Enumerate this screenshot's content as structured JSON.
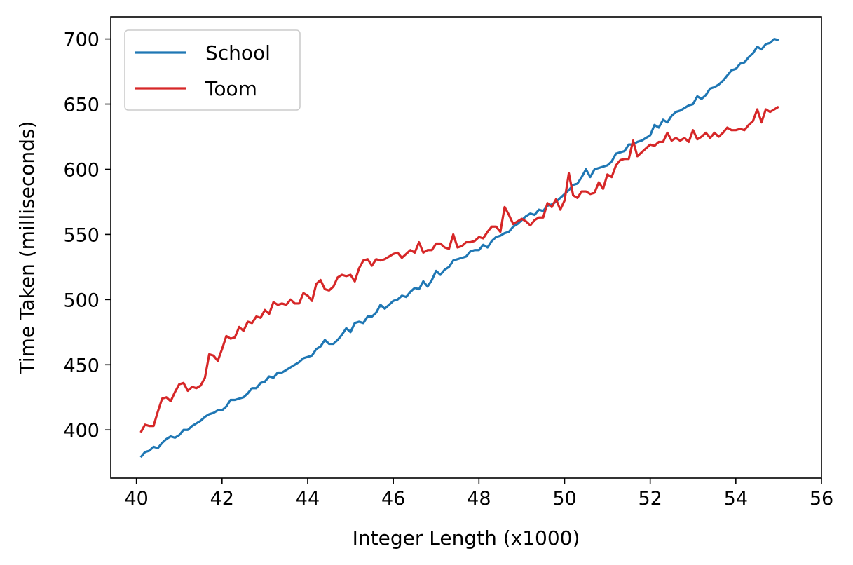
{
  "chart_data": {
    "type": "line",
    "title": "",
    "xlabel": "Integer Length (x1000)",
    "ylabel": "Time Taken (milliseconds)",
    "xlim": [
      39.4,
      56.0
    ],
    "ylim": [
      363,
      717
    ],
    "xticks": [
      40,
      42,
      44,
      46,
      48,
      50,
      52,
      54,
      56
    ],
    "yticks": [
      400,
      450,
      500,
      550,
      600,
      650,
      700
    ],
    "grid": false,
    "legend": "top-left",
    "series": [
      {
        "name": "School",
        "color": "#1f77b4",
        "points": [
          [
            40.1,
            379
          ],
          [
            40.2,
            383
          ],
          [
            40.3,
            384
          ],
          [
            40.4,
            387
          ],
          [
            40.5,
            386
          ],
          [
            40.6,
            390
          ],
          [
            40.7,
            393
          ],
          [
            40.8,
            395
          ],
          [
            40.9,
            394
          ],
          [
            41.0,
            396
          ],
          [
            41.1,
            400
          ],
          [
            41.2,
            400
          ],
          [
            41.3,
            403
          ],
          [
            41.4,
            405
          ],
          [
            41.5,
            407
          ],
          [
            41.6,
            410
          ],
          [
            41.7,
            412
          ],
          [
            41.8,
            413
          ],
          [
            41.9,
            415
          ],
          [
            42.0,
            415
          ],
          [
            42.1,
            418
          ],
          [
            42.2,
            423
          ],
          [
            42.3,
            423
          ],
          [
            42.4,
            424
          ],
          [
            42.5,
            425
          ],
          [
            42.6,
            428
          ],
          [
            42.7,
            432
          ],
          [
            42.8,
            432
          ],
          [
            42.9,
            436
          ],
          [
            43.0,
            437
          ],
          [
            43.1,
            441
          ],
          [
            43.2,
            440
          ],
          [
            43.3,
            444
          ],
          [
            43.4,
            444
          ],
          [
            43.5,
            446
          ],
          [
            43.6,
            448
          ],
          [
            43.7,
            450
          ],
          [
            43.8,
            452
          ],
          [
            43.9,
            455
          ],
          [
            44.0,
            456
          ],
          [
            44.1,
            457
          ],
          [
            44.2,
            462
          ],
          [
            44.3,
            464
          ],
          [
            44.4,
            469
          ],
          [
            44.5,
            466
          ],
          [
            44.6,
            466
          ],
          [
            44.7,
            469
          ],
          [
            44.8,
            473
          ],
          [
            44.9,
            478
          ],
          [
            45.0,
            475
          ],
          [
            45.1,
            482
          ],
          [
            45.2,
            483
          ],
          [
            45.3,
            482
          ],
          [
            45.4,
            487
          ],
          [
            45.5,
            487
          ],
          [
            45.6,
            490
          ],
          [
            45.7,
            496
          ],
          [
            45.8,
            493
          ],
          [
            45.9,
            496
          ],
          [
            46.0,
            499
          ],
          [
            46.1,
            500
          ],
          [
            46.2,
            503
          ],
          [
            46.3,
            502
          ],
          [
            46.4,
            506
          ],
          [
            46.5,
            509
          ],
          [
            46.6,
            508
          ],
          [
            46.7,
            514
          ],
          [
            46.8,
            510
          ],
          [
            46.9,
            515
          ],
          [
            47.0,
            522
          ],
          [
            47.1,
            519
          ],
          [
            47.2,
            523
          ],
          [
            47.3,
            525
          ],
          [
            47.4,
            530
          ],
          [
            47.5,
            531
          ],
          [
            47.6,
            532
          ],
          [
            47.7,
            533
          ],
          [
            47.8,
            537
          ],
          [
            47.9,
            538
          ],
          [
            48.0,
            538
          ],
          [
            48.1,
            542
          ],
          [
            48.2,
            540
          ],
          [
            48.3,
            545
          ],
          [
            48.4,
            548
          ],
          [
            48.5,
            549
          ],
          [
            48.6,
            551
          ],
          [
            48.7,
            552
          ],
          [
            48.8,
            556
          ],
          [
            48.9,
            558
          ],
          [
            49.0,
            561
          ],
          [
            49.1,
            564
          ],
          [
            49.2,
            566
          ],
          [
            49.3,
            565
          ],
          [
            49.4,
            569
          ],
          [
            49.5,
            568
          ],
          [
            49.6,
            572
          ],
          [
            49.7,
            573
          ],
          [
            49.8,
            575
          ],
          [
            49.9,
            578
          ],
          [
            50.0,
            581
          ],
          [
            50.1,
            584
          ],
          [
            50.2,
            588
          ],
          [
            50.3,
            589
          ],
          [
            50.4,
            594
          ],
          [
            50.5,
            600
          ],
          [
            50.6,
            594
          ],
          [
            50.7,
            600
          ],
          [
            50.8,
            601
          ],
          [
            50.9,
            602
          ],
          [
            51.0,
            603
          ],
          [
            51.1,
            606
          ],
          [
            51.2,
            612
          ],
          [
            51.3,
            613
          ],
          [
            51.4,
            614
          ],
          [
            51.5,
            619
          ],
          [
            51.6,
            619
          ],
          [
            51.7,
            621
          ],
          [
            51.8,
            622
          ],
          [
            51.9,
            624
          ],
          [
            52.0,
            626
          ],
          [
            52.1,
            634
          ],
          [
            52.2,
            632
          ],
          [
            52.3,
            638
          ],
          [
            52.4,
            636
          ],
          [
            52.5,
            641
          ],
          [
            52.6,
            644
          ],
          [
            52.7,
            645
          ],
          [
            52.8,
            647
          ],
          [
            52.9,
            649
          ],
          [
            53.0,
            650
          ],
          [
            53.1,
            656
          ],
          [
            53.2,
            654
          ],
          [
            53.3,
            657
          ],
          [
            53.4,
            662
          ],
          [
            53.5,
            663
          ],
          [
            53.6,
            665
          ],
          [
            53.7,
            668
          ],
          [
            53.8,
            672
          ],
          [
            53.9,
            676
          ],
          [
            54.0,
            677
          ],
          [
            54.1,
            681
          ],
          [
            54.2,
            682
          ],
          [
            54.3,
            686
          ],
          [
            54.4,
            689
          ],
          [
            54.5,
            694
          ],
          [
            54.6,
            692
          ],
          [
            54.7,
            696
          ],
          [
            54.8,
            697
          ],
          [
            54.9,
            700
          ],
          [
            55.0,
            699
          ]
        ]
      },
      {
        "name": "Toom",
        "color": "#d62728",
        "points": [
          [
            40.1,
            398
          ],
          [
            40.2,
            404
          ],
          [
            40.3,
            403
          ],
          [
            40.4,
            403
          ],
          [
            40.5,
            414
          ],
          [
            40.6,
            424
          ],
          [
            40.7,
            425
          ],
          [
            40.8,
            422
          ],
          [
            40.9,
            429
          ],
          [
            41.0,
            435
          ],
          [
            41.1,
            436
          ],
          [
            41.2,
            430
          ],
          [
            41.3,
            433
          ],
          [
            41.4,
            432
          ],
          [
            41.5,
            434
          ],
          [
            41.6,
            440
          ],
          [
            41.7,
            458
          ],
          [
            41.8,
            457
          ],
          [
            41.9,
            453
          ],
          [
            42.0,
            462
          ],
          [
            42.1,
            472
          ],
          [
            42.2,
            470
          ],
          [
            42.3,
            471
          ],
          [
            42.4,
            479
          ],
          [
            42.5,
            476
          ],
          [
            42.6,
            483
          ],
          [
            42.7,
            482
          ],
          [
            42.8,
            487
          ],
          [
            42.9,
            486
          ],
          [
            43.0,
            492
          ],
          [
            43.1,
            489
          ],
          [
            43.2,
            498
          ],
          [
            43.3,
            496
          ],
          [
            43.4,
            497
          ],
          [
            43.5,
            496
          ],
          [
            43.6,
            500
          ],
          [
            43.7,
            497
          ],
          [
            43.8,
            497
          ],
          [
            43.9,
            505
          ],
          [
            44.0,
            503
          ],
          [
            44.1,
            499
          ],
          [
            44.2,
            512
          ],
          [
            44.3,
            515
          ],
          [
            44.4,
            508
          ],
          [
            44.5,
            507
          ],
          [
            44.6,
            510
          ],
          [
            44.7,
            517
          ],
          [
            44.8,
            519
          ],
          [
            44.9,
            518
          ],
          [
            45.0,
            519
          ],
          [
            45.1,
            514
          ],
          [
            45.2,
            524
          ],
          [
            45.3,
            530
          ],
          [
            45.4,
            531
          ],
          [
            45.5,
            526
          ],
          [
            45.6,
            531
          ],
          [
            45.7,
            530
          ],
          [
            45.8,
            531
          ],
          [
            45.9,
            533
          ],
          [
            46.0,
            535
          ],
          [
            46.1,
            536
          ],
          [
            46.2,
            532
          ],
          [
            46.3,
            535
          ],
          [
            46.4,
            538
          ],
          [
            46.5,
            536
          ],
          [
            46.6,
            544
          ],
          [
            46.7,
            536
          ],
          [
            46.8,
            538
          ],
          [
            46.9,
            538
          ],
          [
            47.0,
            543
          ],
          [
            47.1,
            543
          ],
          [
            47.2,
            540
          ],
          [
            47.3,
            539
          ],
          [
            47.4,
            550
          ],
          [
            47.5,
            540
          ],
          [
            47.6,
            541
          ],
          [
            47.7,
            544
          ],
          [
            47.8,
            544
          ],
          [
            47.9,
            545
          ],
          [
            48.0,
            548
          ],
          [
            48.1,
            547
          ],
          [
            48.2,
            552
          ],
          [
            48.3,
            556
          ],
          [
            48.4,
            556
          ],
          [
            48.5,
            552
          ],
          [
            48.6,
            571
          ],
          [
            48.7,
            565
          ],
          [
            48.8,
            558
          ],
          [
            48.9,
            560
          ],
          [
            49.0,
            562
          ],
          [
            49.1,
            560
          ],
          [
            49.2,
            557
          ],
          [
            49.3,
            561
          ],
          [
            49.4,
            563
          ],
          [
            49.5,
            563
          ],
          [
            49.6,
            574
          ],
          [
            49.7,
            571
          ],
          [
            49.8,
            577
          ],
          [
            49.9,
            569
          ],
          [
            50.0,
            576
          ],
          [
            50.1,
            597
          ],
          [
            50.2,
            580
          ],
          [
            50.3,
            578
          ],
          [
            50.4,
            583
          ],
          [
            50.5,
            583
          ],
          [
            50.6,
            581
          ],
          [
            50.7,
            582
          ],
          [
            50.8,
            590
          ],
          [
            50.9,
            585
          ],
          [
            51.0,
            596
          ],
          [
            51.1,
            594
          ],
          [
            51.2,
            603
          ],
          [
            51.3,
            607
          ],
          [
            51.4,
            608
          ],
          [
            51.5,
            608
          ],
          [
            51.6,
            622
          ],
          [
            51.7,
            610
          ],
          [
            51.8,
            613
          ],
          [
            51.9,
            616
          ],
          [
            52.0,
            619
          ],
          [
            52.1,
            618
          ],
          [
            52.2,
            621
          ],
          [
            52.3,
            621
          ],
          [
            52.4,
            628
          ],
          [
            52.5,
            622
          ],
          [
            52.6,
            624
          ],
          [
            52.7,
            622
          ],
          [
            52.8,
            624
          ],
          [
            52.9,
            621
          ],
          [
            53.0,
            630
          ],
          [
            53.1,
            623
          ],
          [
            53.2,
            625
          ],
          [
            53.3,
            628
          ],
          [
            53.4,
            624
          ],
          [
            53.5,
            628
          ],
          [
            53.6,
            625
          ],
          [
            53.7,
            628
          ],
          [
            53.8,
            632
          ],
          [
            53.9,
            630
          ],
          [
            54.0,
            630
          ],
          [
            54.1,
            631
          ],
          [
            54.2,
            630
          ],
          [
            54.3,
            634
          ],
          [
            54.4,
            637
          ],
          [
            54.5,
            646
          ],
          [
            54.6,
            636
          ],
          [
            54.7,
            646
          ],
          [
            54.8,
            644
          ],
          [
            54.9,
            646
          ],
          [
            55.0,
            648
          ]
        ]
      }
    ]
  }
}
